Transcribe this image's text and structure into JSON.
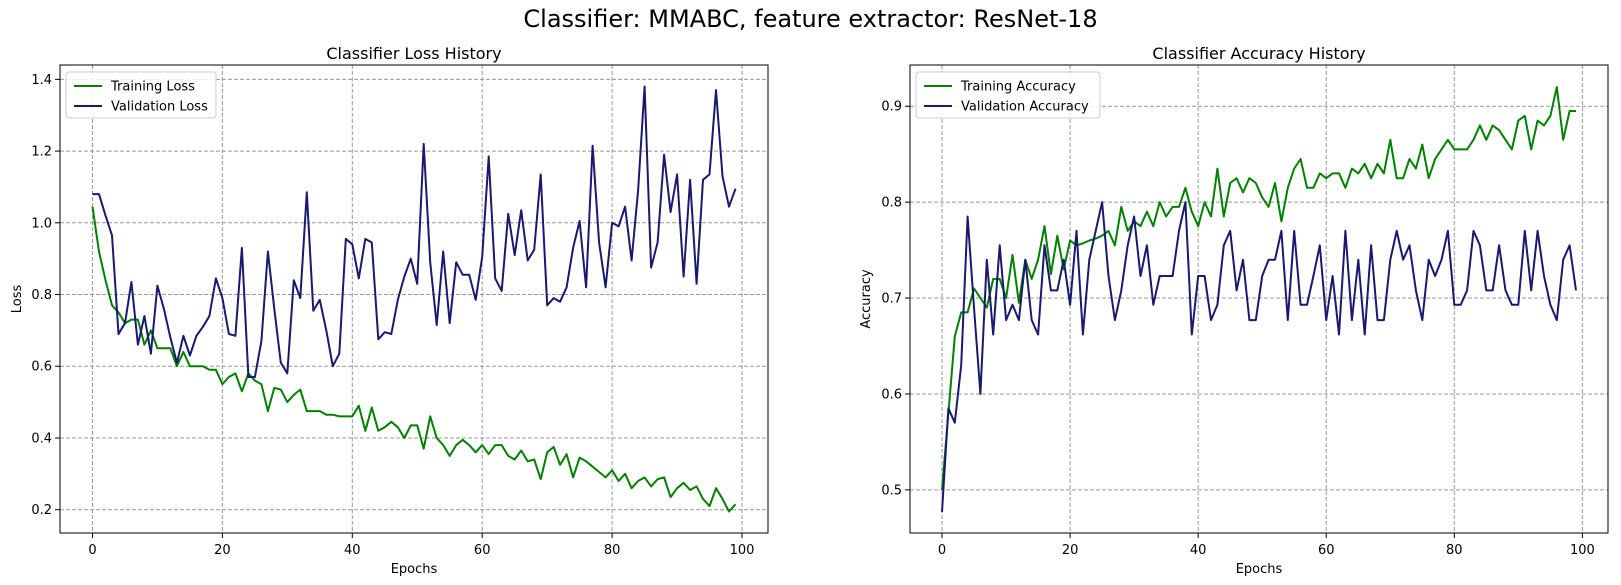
{
  "figure": {
    "title": "Classifier: MMABC, feature extractor: ResNet-18"
  },
  "chart_data": [
    {
      "type": "line",
      "title": "Classifier Loss History",
      "xlabel": "Epochs",
      "ylabel": "Loss",
      "xlim": [
        -5,
        104
      ],
      "ylim": [
        0.135,
        1.44
      ],
      "xticks": [
        0,
        20,
        40,
        60,
        80,
        100
      ],
      "xtick_labels": [
        "0",
        "20",
        "40",
        "60",
        "80",
        "100"
      ],
      "yticks": [
        0.2,
        0.4,
        0.6,
        0.8,
        1.0,
        1.2,
        1.4
      ],
      "ytick_labels": [
        "0.2",
        "0.4",
        "0.6",
        "0.8",
        "1.0",
        "1.2",
        "1.4"
      ],
      "grid": true,
      "legend": "top-left",
      "series": [
        {
          "name": "Training Loss",
          "color": "#008000",
          "values": [
            1.045,
            0.92,
            0.84,
            0.77,
            0.75,
            0.72,
            0.73,
            0.73,
            0.66,
            0.7,
            0.65,
            0.65,
            0.65,
            0.6,
            0.64,
            0.6,
            0.6,
            0.6,
            0.59,
            0.59,
            0.55,
            0.57,
            0.58,
            0.53,
            0.58,
            0.56,
            0.55,
            0.475,
            0.54,
            0.535,
            0.5,
            0.52,
            0.535,
            0.475,
            0.475,
            0.475,
            0.465,
            0.465,
            0.46,
            0.46,
            0.46,
            0.49,
            0.42,
            0.485,
            0.42,
            0.43,
            0.445,
            0.43,
            0.4,
            0.435,
            0.435,
            0.37,
            0.46,
            0.4,
            0.38,
            0.35,
            0.38,
            0.395,
            0.38,
            0.36,
            0.38,
            0.355,
            0.38,
            0.38,
            0.35,
            0.34,
            0.365,
            0.335,
            0.34,
            0.285,
            0.36,
            0.375,
            0.325,
            0.355,
            0.29,
            0.345,
            0.335,
            0.32,
            0.305,
            0.29,
            0.31,
            0.28,
            0.3,
            0.26,
            0.28,
            0.29,
            0.265,
            0.285,
            0.29,
            0.235,
            0.26,
            0.275,
            0.255,
            0.265,
            0.23,
            0.21,
            0.26,
            0.23,
            0.195,
            0.215
          ]
        },
        {
          "name": "Validation Loss",
          "color": "#191970",
          "values": [
            1.08,
            1.08,
            1.02,
            0.965,
            0.69,
            0.72,
            0.835,
            0.66,
            0.74,
            0.635,
            0.825,
            0.76,
            0.68,
            0.61,
            0.685,
            0.63,
            0.685,
            0.71,
            0.74,
            0.845,
            0.79,
            0.69,
            0.685,
            0.93,
            0.57,
            0.57,
            0.67,
            0.92,
            0.76,
            0.61,
            0.58,
            0.84,
            0.79,
            1.085,
            0.755,
            0.785,
            0.7,
            0.6,
            0.635,
            0.955,
            0.94,
            0.845,
            0.955,
            0.945,
            0.675,
            0.695,
            0.69,
            0.785,
            0.85,
            0.9,
            0.83,
            1.22,
            0.89,
            0.715,
            0.92,
            0.72,
            0.89,
            0.855,
            0.855,
            0.785,
            0.905,
            1.185,
            0.845,
            0.81,
            1.025,
            0.91,
            1.035,
            0.895,
            0.925,
            1.135,
            0.77,
            0.79,
            0.78,
            0.82,
            0.93,
            1.005,
            0.82,
            1.215,
            0.945,
            0.82,
            1.0,
            0.99,
            1.045,
            0.895,
            1.09,
            1.38,
            0.875,
            0.945,
            1.19,
            1.03,
            1.135,
            0.85,
            1.12,
            0.83,
            1.12,
            1.135,
            1.37,
            1.13,
            1.045,
            1.095
          ]
        }
      ]
    },
    {
      "type": "line",
      "title": "Classifier Accuracy History",
      "xlabel": "Epochs",
      "ylabel": "Accuracy",
      "xlim": [
        -5,
        104
      ],
      "ylim": [
        0.455,
        0.943
      ],
      "xticks": [
        0,
        20,
        40,
        60,
        80,
        100
      ],
      "xtick_labels": [
        "0",
        "20",
        "40",
        "60",
        "80",
        "100"
      ],
      "yticks": [
        0.5,
        0.6,
        0.7,
        0.8,
        0.9
      ],
      "ytick_labels": [
        "0.5",
        "0.6",
        "0.7",
        "0.8",
        "0.9"
      ],
      "grid": true,
      "legend": "top-left",
      "series": [
        {
          "name": "Training Accuracy",
          "color": "#008000",
          "values": [
            0.5,
            0.58,
            0.66,
            0.685,
            0.685,
            0.71,
            0.7,
            0.69,
            0.72,
            0.72,
            0.7,
            0.745,
            0.695,
            0.74,
            0.72,
            0.74,
            0.775,
            0.725,
            0.765,
            0.73,
            0.76,
            0.755,
            0.757,
            0.76,
            0.762,
            0.765,
            0.77,
            0.755,
            0.795,
            0.77,
            0.78,
            0.775,
            0.79,
            0.775,
            0.8,
            0.785,
            0.795,
            0.795,
            0.815,
            0.79,
            0.775,
            0.8,
            0.785,
            0.835,
            0.785,
            0.82,
            0.825,
            0.81,
            0.825,
            0.82,
            0.805,
            0.795,
            0.82,
            0.78,
            0.815,
            0.835,
            0.845,
            0.815,
            0.815,
            0.83,
            0.825,
            0.83,
            0.83,
            0.815,
            0.835,
            0.83,
            0.84,
            0.825,
            0.84,
            0.83,
            0.865,
            0.825,
            0.825,
            0.845,
            0.835,
            0.86,
            0.825,
            0.845,
            0.855,
            0.865,
            0.855,
            0.855,
            0.855,
            0.865,
            0.88,
            0.865,
            0.88,
            0.875,
            0.865,
            0.855,
            0.885,
            0.89,
            0.855,
            0.885,
            0.88,
            0.89,
            0.92,
            0.865,
            0.895,
            0.895
          ]
        },
        {
          "name": "Validation Accuracy",
          "color": "#191970",
          "values": [
            0.477,
            0.585,
            0.57,
            0.63,
            0.785,
            0.69,
            0.6,
            0.74,
            0.662,
            0.755,
            0.677,
            0.693,
            0.677,
            0.74,
            0.677,
            0.662,
            0.755,
            0.708,
            0.708,
            0.74,
            0.693,
            0.77,
            0.662,
            0.74,
            0.77,
            0.8,
            0.723,
            0.677,
            0.708,
            0.755,
            0.785,
            0.723,
            0.755,
            0.693,
            0.723,
            0.723,
            0.723,
            0.77,
            0.8,
            0.662,
            0.723,
            0.723,
            0.677,
            0.693,
            0.755,
            0.77,
            0.708,
            0.74,
            0.677,
            0.677,
            0.723,
            0.74,
            0.74,
            0.77,
            0.677,
            0.77,
            0.693,
            0.693,
            0.723,
            0.755,
            0.677,
            0.723,
            0.662,
            0.77,
            0.677,
            0.74,
            0.662,
            0.755,
            0.677,
            0.677,
            0.74,
            0.77,
            0.74,
            0.755,
            0.708,
            0.677,
            0.74,
            0.723,
            0.74,
            0.77,
            0.693,
            0.693,
            0.708,
            0.77,
            0.755,
            0.708,
            0.708,
            0.755,
            0.708,
            0.693,
            0.693,
            0.77,
            0.708,
            0.77,
            0.723,
            0.693,
            0.677,
            0.74,
            0.755,
            0.708
          ]
        }
      ]
    }
  ]
}
